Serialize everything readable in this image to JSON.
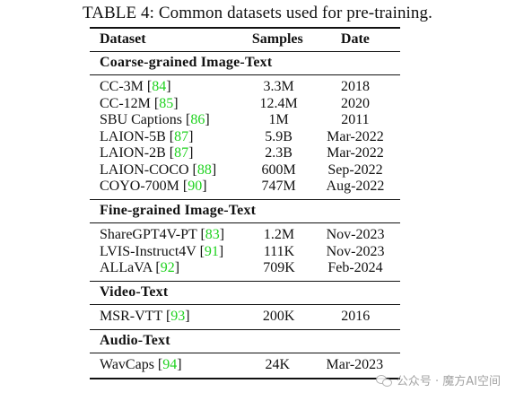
{
  "caption": "TABLE 4: Common datasets used for pre-training.",
  "headers": {
    "dataset": "Dataset",
    "samples": "Samples",
    "date": "Date"
  },
  "sections": [
    {
      "title": "Coarse-grained Image-Text",
      "rows": [
        {
          "name": "CC-3M",
          "ref": "84",
          "samples": "3.3M",
          "date": "2018"
        },
        {
          "name": "CC-12M",
          "ref": "85",
          "samples": "12.4M",
          "date": "2020"
        },
        {
          "name": "SBU Captions",
          "ref": "86",
          "samples": "1M",
          "date": "2011"
        },
        {
          "name": "LAION-5B",
          "ref": "87",
          "samples": "5.9B",
          "date": "Mar-2022"
        },
        {
          "name": "LAION-2B",
          "ref": "87",
          "samples": "2.3B",
          "date": "Mar-2022"
        },
        {
          "name": "LAION-COCO",
          "ref": "88",
          "samples": "600M",
          "date": "Sep-2022"
        },
        {
          "name": "COYO-700M",
          "ref": "90",
          "samples": "747M",
          "date": "Aug-2022"
        }
      ]
    },
    {
      "title": "Fine-grained Image-Text",
      "rows": [
        {
          "name": "ShareGPT4V-PT",
          "ref": "83",
          "samples": "1.2M",
          "date": "Nov-2023"
        },
        {
          "name": "LVIS-Instruct4V",
          "ref": "91",
          "samples": "111K",
          "date": "Nov-2023"
        },
        {
          "name": "ALLaVA",
          "ref": "92",
          "samples": "709K",
          "date": "Feb-2024"
        }
      ]
    },
    {
      "title": "Video-Text",
      "rows": [
        {
          "name": "MSR-VTT",
          "ref": "93",
          "samples": "200K",
          "date": "2016"
        }
      ]
    },
    {
      "title": "Audio-Text",
      "rows": [
        {
          "name": "WavCaps",
          "ref": "94",
          "samples": "24K",
          "date": "Mar-2023"
        }
      ]
    }
  ],
  "watermark": {
    "text": "公众号 · 魔方AI空间",
    "icon": "wechat-icon"
  }
}
